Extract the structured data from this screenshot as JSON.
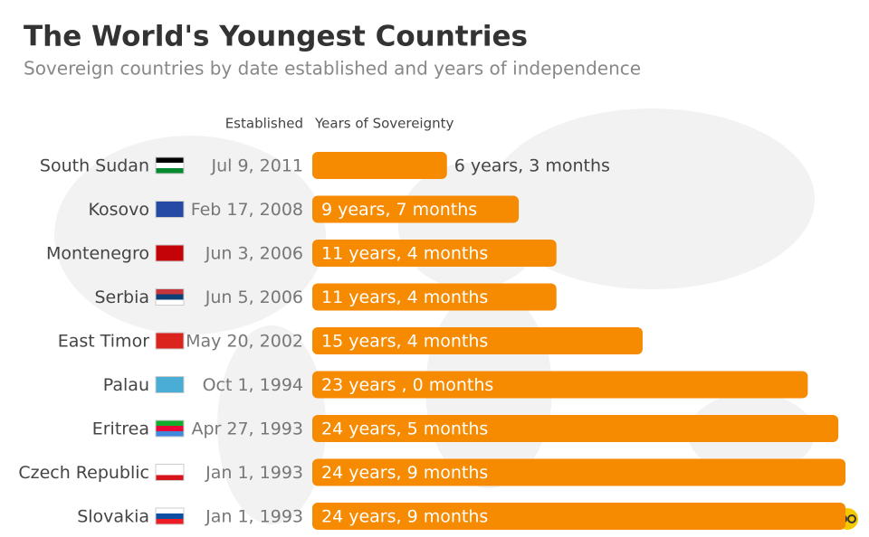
{
  "chart_data": {
    "type": "bar",
    "orientation": "horizontal",
    "title": "The World's Youngest Countries",
    "subtitle": "Sovereign countries by date established and years of independence",
    "established_header": "Established",
    "bar_header": "Years of Sovereignty",
    "categories": [
      "South Sudan",
      "Kosovo",
      "Montenegro",
      "Serbia",
      "East Timor",
      "Palau",
      "Eritrea",
      "Czech Republic",
      "Slovakia"
    ],
    "established": [
      "Jul 9, 2011",
      "Feb 17, 2008",
      "Jun 3, 2006",
      "Jun 5, 2006",
      "May 20, 2002",
      "Oct 1, 1994",
      "Apr 27, 1993",
      "Jan 1, 1993",
      "Jan 1, 1993"
    ],
    "values": [
      6.25,
      9.583,
      11.333,
      11.333,
      15.333,
      23,
      24.417,
      24.75,
      24.75
    ],
    "value_labels": [
      "6 years, 3 months",
      "9 years, 7 months",
      "11 years, 4 months",
      "11 years, 4 months",
      "15 years, 4 months",
      "23 years , 0 months",
      "24 years, 5 months",
      "24 years, 9 months",
      "24 years, 9 months"
    ],
    "color": "#f68a00",
    "xlim": [
      0,
      25
    ]
  }
}
